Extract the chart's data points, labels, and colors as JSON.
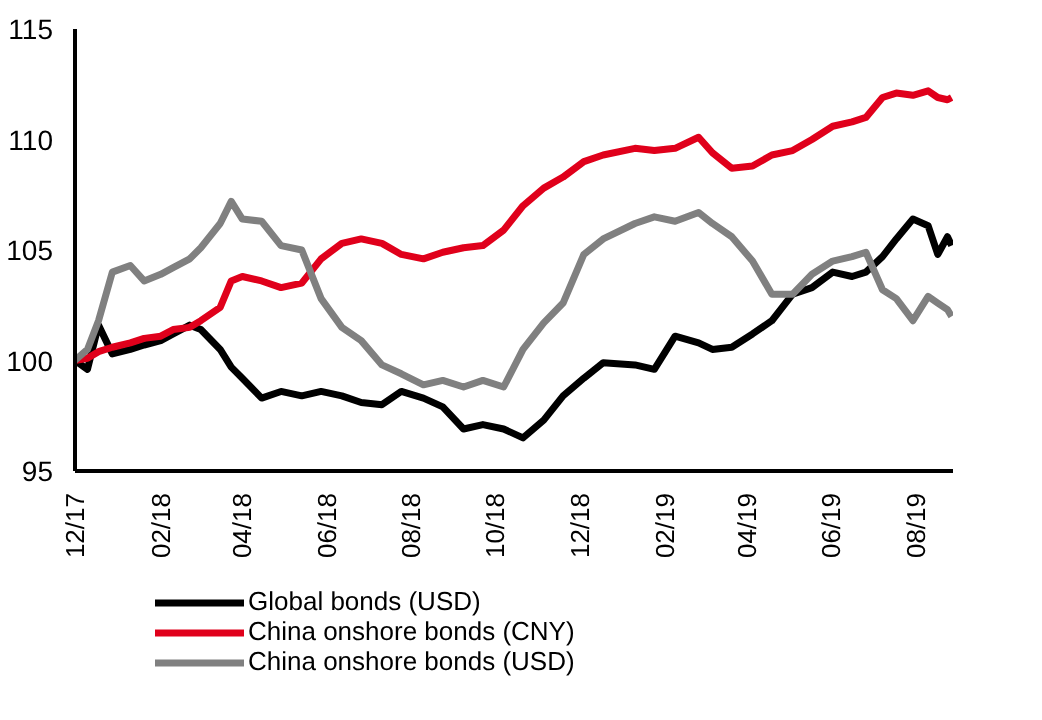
{
  "chart_data": {
    "type": "line",
    "x": [
      "2017-12-01",
      "2017-12-10",
      "2017-12-18",
      "2017-12-28",
      "2018-01-10",
      "2018-01-20",
      "2018-02-01",
      "2018-02-10",
      "2018-02-22",
      "2018-03-02",
      "2018-03-16",
      "2018-03-24",
      "2018-04-01",
      "2018-04-15",
      "2018-04-29",
      "2018-05-14",
      "2018-05-28",
      "2018-06-12",
      "2018-06-26",
      "2018-07-11",
      "2018-07-25",
      "2018-08-10",
      "2018-08-24",
      "2018-09-08",
      "2018-09-22",
      "2018-10-07",
      "2018-10-21",
      "2018-11-05",
      "2018-11-19",
      "2018-12-04",
      "2018-12-18",
      "2019-01-10",
      "2019-01-24",
      "2019-02-08",
      "2019-02-25",
      "2019-03-07",
      "2019-03-21",
      "2019-04-05",
      "2019-04-19",
      "2019-05-04",
      "2019-05-18",
      "2019-06-02",
      "2019-06-16",
      "2019-06-26",
      "2019-07-08",
      "2019-07-18",
      "2019-07-30",
      "2019-08-10",
      "2019-08-17",
      "2019-08-24",
      "2019-08-27"
    ],
    "series": [
      {
        "name": "Global bonds (USD)",
        "color": "#000000",
        "values": [
          100,
          99.6,
          101.6,
          100.3,
          100.5,
          100.7,
          100.9,
          101.2,
          101.6,
          101.4,
          100.5,
          99.7,
          99.2,
          98.3,
          98.6,
          98.4,
          98.6,
          98.4,
          98.1,
          98.0,
          98.6,
          98.3,
          97.9,
          96.9,
          97.1,
          96.9,
          96.5,
          97.3,
          98.4,
          99.2,
          99.9,
          99.8,
          99.6,
          101.1,
          100.8,
          100.5,
          100.6,
          101.2,
          101.8,
          103.0,
          103.3,
          104.0,
          103.8,
          104.0,
          104.7,
          105.5,
          106.4,
          106.1,
          104.8,
          105.6,
          105.2
        ]
      },
      {
        "name": "China onshore bonds (CNY)",
        "color": "#e0001b",
        "values": [
          100,
          100.1,
          100.4,
          100.6,
          100.8,
          101.0,
          101.1,
          101.4,
          101.5,
          101.8,
          102.4,
          103.6,
          103.8,
          103.6,
          103.3,
          103.5,
          104.6,
          105.3,
          105.5,
          105.3,
          104.8,
          104.6,
          104.9,
          105.1,
          105.2,
          105.9,
          107.0,
          107.8,
          108.3,
          109.0,
          109.3,
          109.6,
          109.5,
          109.6,
          110.1,
          109.4,
          108.7,
          108.8,
          109.3,
          109.5,
          110.0,
          110.6,
          110.8,
          111.0,
          111.9,
          112.1,
          112.0,
          112.2,
          111.9,
          111.8,
          111.9
        ]
      },
      {
        "name": "China onshore bonds (USD)",
        "color": "#808080",
        "values": [
          100,
          100.5,
          101.8,
          104.0,
          104.3,
          103.6,
          103.9,
          104.2,
          104.6,
          105.1,
          106.2,
          107.2,
          106.4,
          106.3,
          105.2,
          105.0,
          102.8,
          101.5,
          100.9,
          99.8,
          99.4,
          98.9,
          99.1,
          98.8,
          99.1,
          98.8,
          100.5,
          101.7,
          102.6,
          104.8,
          105.5,
          106.2,
          106.5,
          106.3,
          106.7,
          106.2,
          105.6,
          104.5,
          103.0,
          103.0,
          103.9,
          104.5,
          104.7,
          104.9,
          103.2,
          102.8,
          101.8,
          102.9,
          102.6,
          102.3,
          102.0
        ]
      }
    ],
    "xlim": [
      "2017-12-01",
      "2019-08-28"
    ],
    "xticks": [
      {
        "value": "2017-12",
        "label": "12/17"
      },
      {
        "value": "2018-02",
        "label": "02/18"
      },
      {
        "value": "2018-04",
        "label": "04/18"
      },
      {
        "value": "2018-06",
        "label": "06/18"
      },
      {
        "value": "2018-08",
        "label": "08/18"
      },
      {
        "value": "2018-10",
        "label": "10/18"
      },
      {
        "value": "2018-12",
        "label": "12/18"
      },
      {
        "value": "2019-02",
        "label": "02/19"
      },
      {
        "value": "2019-04",
        "label": "04/19"
      },
      {
        "value": "2019-06",
        "label": "06/19"
      },
      {
        "value": "2019-08",
        "label": "08/19"
      }
    ],
    "ylim": [
      95,
      115
    ],
    "yticks": [
      95,
      100,
      105,
      110,
      115
    ],
    "grid": false,
    "legend": "bottom",
    "marker": "none",
    "line_style": "solid"
  }
}
